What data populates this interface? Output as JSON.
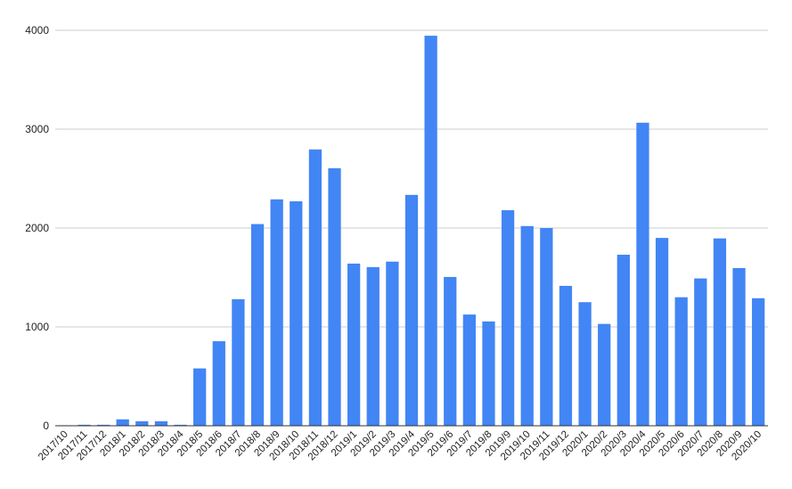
{
  "chart_data": {
    "type": "bar",
    "title": "",
    "xlabel": "",
    "ylabel": "",
    "ylim": [
      0,
      4000
    ],
    "yticks": [
      0,
      1000,
      2000,
      3000,
      4000
    ],
    "grid": true,
    "legend": "none",
    "bar_color": "#4285F4",
    "grid_color": "#cccccc",
    "categories": [
      "2017/10",
      "2017/11",
      "2017/12",
      "2018/1",
      "2018/2",
      "2018/3",
      "2018/4",
      "2018/5",
      "2018/6",
      "2018/7",
      "2018/8",
      "2018/9",
      "2018/10",
      "2018/11",
      "2018/12",
      "2019/1",
      "2019/2",
      "2019/3",
      "2019/4",
      "2019/5",
      "2019/6",
      "2019/7",
      "2019/8",
      "2019/9",
      "2019/10",
      "2019/11",
      "2019/12",
      "2020/1",
      "2020/2",
      "2020/3",
      "2020/4",
      "2020/5",
      "2020/6",
      "2020/7",
      "2020/8",
      "2020/9",
      "2020/10"
    ],
    "values": [
      5,
      10,
      10,
      65,
      45,
      45,
      10,
      580,
      855,
      1280,
      2040,
      2290,
      2270,
      2795,
      2605,
      1640,
      1605,
      1660,
      2335,
      3945,
      1505,
      1125,
      1055,
      2180,
      2020,
      2000,
      1415,
      1250,
      1030,
      1730,
      3065,
      1900,
      1300,
      1490,
      1895,
      1595,
      1290
    ]
  }
}
